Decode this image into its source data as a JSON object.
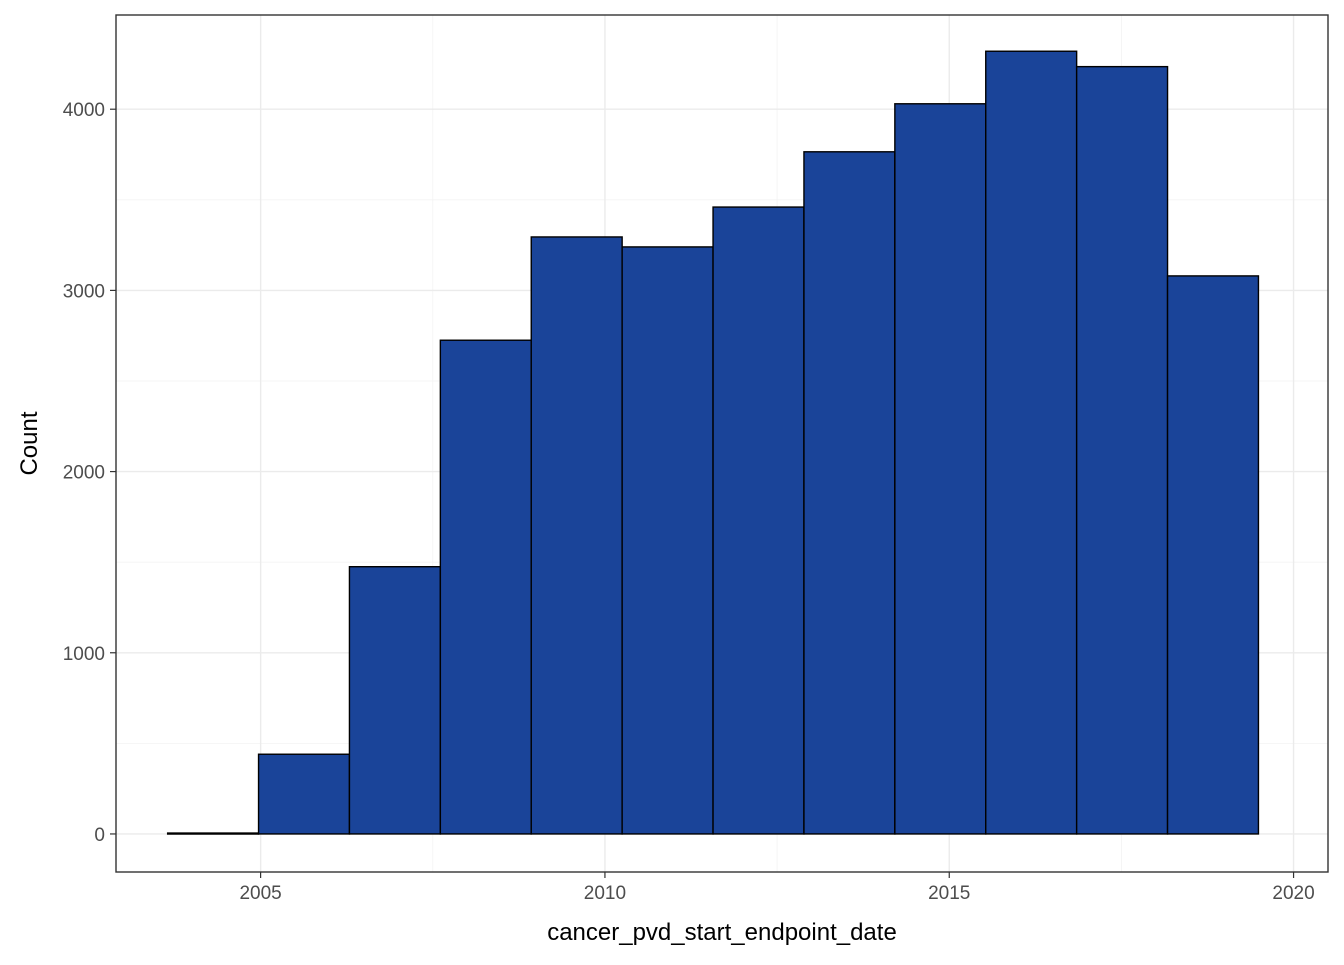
{
  "chart_data": {
    "type": "bar",
    "subtype": "histogram",
    "xlabel": "cancer_pvd_start_endpoint_date",
    "ylabel": "Count",
    "x_ticks": [
      2005,
      2010,
      2015,
      2020
    ],
    "y_ticks": [
      0,
      1000,
      2000,
      3000,
      4000
    ],
    "xlim": [
      2002.9,
      2020.5
    ],
    "ylim": [
      -210,
      4520
    ],
    "grid": true,
    "bin_width_years": 1.32,
    "bins": [
      {
        "start": 2003.65,
        "end": 2004.97,
        "count": 5
      },
      {
        "start": 2004.97,
        "end": 2006.29,
        "count": 440
      },
      {
        "start": 2006.29,
        "end": 2007.61,
        "count": 1475
      },
      {
        "start": 2007.61,
        "end": 2008.93,
        "count": 2725
      },
      {
        "start": 2008.93,
        "end": 2010.25,
        "count": 3295
      },
      {
        "start": 2010.25,
        "end": 2011.57,
        "count": 3240
      },
      {
        "start": 2011.57,
        "end": 2012.89,
        "count": 3460
      },
      {
        "start": 2012.89,
        "end": 2014.21,
        "count": 3765
      },
      {
        "start": 2014.21,
        "end": 2015.53,
        "count": 4030
      },
      {
        "start": 2015.53,
        "end": 2016.85,
        "count": 4320
      },
      {
        "start": 2016.85,
        "end": 2018.17,
        "count": 4235
      },
      {
        "start": 2018.17,
        "end": 2019.49,
        "count": 3080
      }
    ],
    "colors": {
      "bar_fill": "#1a4499",
      "bar_stroke": "#000000",
      "grid": "#ebebeb",
      "panel_border": "#333333",
      "tick_text": "#4d4d4d"
    }
  }
}
